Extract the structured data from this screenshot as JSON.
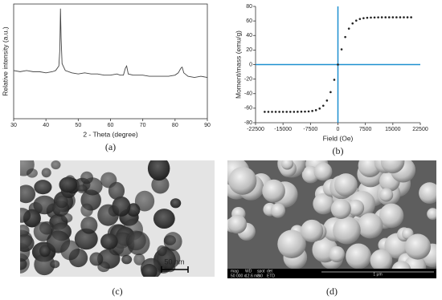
{
  "chart_data": [
    {
      "type": "line",
      "label": "(a)",
      "xlabel": "2 - Theta (degree)",
      "ylabel": "Relative intensity (a.u.)",
      "x": [
        30,
        32,
        34,
        36,
        38,
        40,
        42,
        43,
        44,
        44.3,
        44.5,
        44.7,
        45,
        46,
        48,
        50,
        52,
        54,
        56,
        58,
        60,
        62,
        63,
        64,
        64.6,
        65,
        65.5,
        67,
        70,
        72,
        74,
        76,
        78,
        80,
        81,
        81.8,
        82.2,
        82.7,
        84,
        86,
        88,
        90
      ],
      "values": [
        42,
        41,
        42,
        41,
        41,
        40,
        41,
        42,
        46,
        60,
        96,
        70,
        48,
        42,
        40,
        39,
        40,
        39,
        39,
        38,
        38,
        39,
        38,
        38,
        44,
        46,
        39,
        38,
        38,
        37,
        37,
        37,
        37,
        38,
        40,
        44,
        45,
        40,
        37,
        36,
        37,
        36
      ],
      "color": "#444444",
      "xlim": [
        30,
        90
      ],
      "xticks": [
        30,
        40,
        50,
        60,
        70,
        80,
        90
      ],
      "ylim": [
        0,
        100
      ]
    },
    {
      "type": "scatter",
      "label": "(b)",
      "xlabel": "Field (Oe)",
      "ylabel": "Moment/mass (emu/g)",
      "x": [
        -20000,
        -19000,
        -18000,
        -17000,
        -16000,
        -15000,
        -14000,
        -13000,
        -12000,
        -11000,
        -10000,
        -9000,
        -8000,
        -7000,
        -6000,
        -5000,
        -4000,
        -3000,
        -2000,
        -1000,
        0,
        1000,
        2000,
        3000,
        4000,
        5000,
        6000,
        7000,
        8000,
        9000,
        10000,
        11000,
        12000,
        13000,
        14000,
        15000,
        16000,
        17000,
        18000,
        19000,
        20000
      ],
      "values": [
        -65,
        -65,
        -65,
        -65,
        -65,
        -65,
        -65,
        -65,
        -65,
        -64.9,
        -64.8,
        -64.7,
        -64.4,
        -63.8,
        -62.7,
        -60.5,
        -56.6,
        -49.5,
        -37.9,
        -20.9,
        0,
        20.9,
        37.9,
        49.5,
        56.6,
        60.5,
        62.7,
        63.8,
        64.4,
        64.7,
        64.8,
        64.9,
        65,
        65,
        65,
        65,
        65,
        65,
        65,
        65,
        65
      ],
      "color": "#222222",
      "zero_line_color": "#1e90d0",
      "xlim": [
        -22500,
        22500
      ],
      "xticks": [
        -22500,
        -15000,
        -7500,
        0,
        7500,
        15000,
        22500
      ],
      "ylim": [
        -80,
        80
      ],
      "yticks": [
        -80,
        -60,
        -40,
        -20,
        0,
        20,
        40,
        60,
        80
      ]
    }
  ],
  "images": [
    {
      "label": "(c)",
      "scale_bar": "50 nm"
    },
    {
      "label": "(d)",
      "info_header": [
        "mag",
        "WD",
        "spot",
        "det"
      ],
      "info_values": [
        "50 000 x",
        "12.6 mm",
        "3.0",
        "ETD"
      ],
      "scale_bar": "1 μm"
    }
  ]
}
